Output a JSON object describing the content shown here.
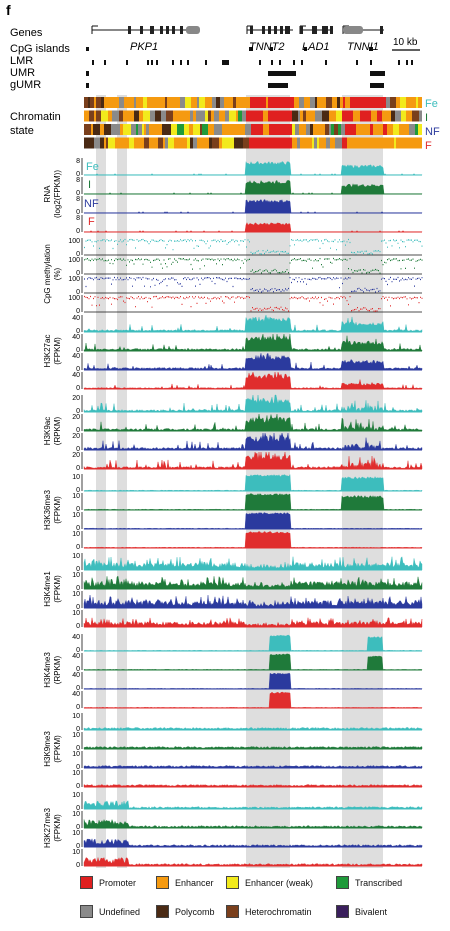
{
  "panel_label": "f",
  "scale_bar": "10 kb",
  "track_labels": {
    "genes": "Genes",
    "cpg_islands": "CpG islands",
    "lmr": "LMR",
    "umr": "UMR",
    "gumr": "gUMR",
    "chromatin_line1": "Chromatin",
    "chromatin_line2": "state"
  },
  "gene_names": [
    "PKP1",
    "TNNT2",
    "LAD1",
    "TNNI1"
  ],
  "samples": [
    {
      "id": "Fe",
      "color": "#3dbdbd"
    },
    {
      "id": "I",
      "color": "#1f7a3a"
    },
    {
      "id": "NF",
      "color": "#2b3a9e"
    },
    {
      "id": "F",
      "color": "#e02d2d"
    }
  ],
  "track_groups": [
    {
      "label_top": "RNA",
      "label_bottom": "(log2(FPKM))",
      "ticks": [
        "8",
        "0"
      ]
    },
    {
      "label_top": "CpG methylation",
      "label_bottom": "(%)",
      "ticks": [
        "100",
        "0"
      ]
    },
    {
      "label_top": "H3K27ac",
      "label_bottom": "(FPKM)",
      "ticks": [
        "40",
        "0"
      ]
    },
    {
      "label_top": "H3K9ac",
      "label_bottom": "(RPKM)",
      "ticks": [
        "20",
        "0"
      ]
    },
    {
      "label_top": "H3K36me3",
      "label_bottom": "(FPKM)",
      "ticks": [
        "10",
        "0"
      ]
    },
    {
      "label_top": "H3K4me1",
      "label_bottom": "(FPKM)",
      "ticks": [
        "10",
        "0"
      ]
    },
    {
      "label_top": "H3K4me3",
      "label_bottom": "(RPKM)",
      "ticks": [
        "40",
        "0"
      ]
    },
    {
      "label_top": "H3K9me3",
      "label_bottom": "(FPKM)",
      "ticks": [
        "10",
        "0"
      ]
    },
    {
      "label_top": "H3K27me3",
      "label_bottom": "(FPKM)",
      "ticks": [
        "10",
        "0"
      ]
    }
  ],
  "legend": [
    {
      "label": "Promoter",
      "color": "#e02020"
    },
    {
      "label": "Enhancer",
      "color": "#f59a10"
    },
    {
      "label": "Enhancer (weak)",
      "color": "#f2ea1c"
    },
    {
      "label": "Transcribed",
      "color": "#1f9a3a"
    },
    {
      "label": "Undefined",
      "color": "#8a8a8a"
    },
    {
      "label": "Polycomb",
      "color": "#4a2a14"
    },
    {
      "label": "Heterochromatin",
      "color": "#7a3f1c"
    },
    {
      "label": "Bivalent",
      "color": "#3a1f5c"
    }
  ]
}
